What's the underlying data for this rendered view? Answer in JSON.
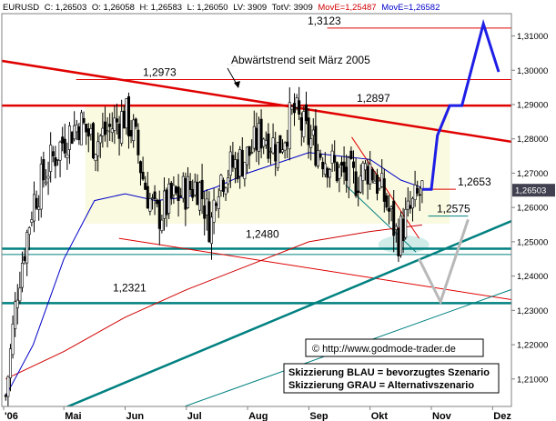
{
  "header": {
    "symbol": "EURUSD",
    "items": [
      {
        "text": "C: 1,26503",
        "color": "#000000"
      },
      {
        "text": "O: 1,26058",
        "color": "#000000"
      },
      {
        "text": "H: 1,26583",
        "color": "#000000"
      },
      {
        "text": "L: 1,26050",
        "color": "#000000"
      },
      {
        "text": "LV: 3909",
        "color": "#000000"
      },
      {
        "text": "TotV: 3909",
        "color": "#000000"
      },
      {
        "text": "MovE=1,25487",
        "color": "#d00000"
      },
      {
        "text": "MovE=1,26582",
        "color": "#0000c8"
      }
    ]
  },
  "chart_data": {
    "type": "line",
    "subtype": "candlestick",
    "title": "",
    "xlabel": "",
    "ylabel": "",
    "ylim": [
      1.202,
      1.3165
    ],
    "yticks": [
      1.21,
      1.22,
      1.23,
      1.24,
      1.25,
      1.26,
      1.27,
      1.28,
      1.29,
      1.3,
      1.31
    ],
    "ytick_labels": [
      "1,21000",
      "1,22000",
      "1,23000",
      "1,24000",
      "1,25000",
      "1,26000",
      "1,27000",
      "1,28000",
      "1,29000",
      "1,30000",
      "1,31000"
    ],
    "xticks": [
      {
        "label": "'06",
        "x": 0
      },
      {
        "label": "Mai",
        "x": 4
      },
      {
        "label": "Jun",
        "x": 5
      },
      {
        "label": "Jul",
        "x": 6
      },
      {
        "label": "Aug",
        "x": 7
      },
      {
        "label": "Sep",
        "x": 8
      },
      {
        "label": "Okt",
        "x": 9
      },
      {
        "label": "Nov",
        "x": 10
      },
      {
        "label": "Dez",
        "x": 11
      }
    ],
    "last_price_label": "1,26503",
    "close_path": [
      [
        3.05,
        1.205
      ],
      [
        3.25,
        1.238
      ],
      [
        3.5,
        1.262
      ],
      [
        3.75,
        1.272
      ],
      [
        4.0,
        1.28
      ],
      [
        4.25,
        1.285
      ],
      [
        4.5,
        1.279
      ],
      [
        4.75,
        1.283
      ],
      [
        5.0,
        1.287
      ],
      [
        5.15,
        1.281
      ],
      [
        5.3,
        1.268
      ],
      [
        5.5,
        1.257
      ],
      [
        5.75,
        1.262
      ],
      [
        6.0,
        1.265
      ],
      [
        6.2,
        1.267
      ],
      [
        6.4,
        1.254
      ],
      [
        6.5,
        1.268
      ],
      [
        6.75,
        1.272
      ],
      [
        7.0,
        1.275
      ],
      [
        7.25,
        1.282
      ],
      [
        7.5,
        1.277
      ],
      [
        7.75,
        1.288
      ],
      [
        8.0,
        1.28
      ],
      [
        8.25,
        1.275
      ],
      [
        8.5,
        1.27
      ],
      [
        8.75,
        1.268
      ],
      [
        9.0,
        1.272
      ],
      [
        9.25,
        1.262
      ],
      [
        9.45,
        1.251
      ],
      [
        9.6,
        1.257
      ],
      [
        9.75,
        1.262
      ],
      [
        9.85,
        1.265
      ]
    ],
    "moving_averages": [
      {
        "name": "MovE=1,25487",
        "color": "#d00000",
        "points": [
          [
            3.05,
            1.21
          ],
          [
            4.0,
            1.218
          ],
          [
            5.0,
            1.228
          ],
          [
            6.0,
            1.236
          ],
          [
            7.0,
            1.243
          ],
          [
            8.0,
            1.25
          ],
          [
            9.0,
            1.253
          ],
          [
            9.85,
            1.2549
          ]
        ]
      },
      {
        "name": "MovE=1,26582",
        "color": "#0000c8",
        "points": [
          [
            3.05,
            1.205
          ],
          [
            3.5,
            1.22
          ],
          [
            4.0,
            1.245
          ],
          [
            4.5,
            1.262
          ],
          [
            5.0,
            1.264
          ],
          [
            5.5,
            1.262
          ],
          [
            6.0,
            1.263
          ],
          [
            6.5,
            1.266
          ],
          [
            7.0,
            1.27
          ],
          [
            7.5,
            1.273
          ],
          [
            8.0,
            1.276
          ],
          [
            8.5,
            1.275
          ],
          [
            9.0,
            1.274
          ],
          [
            9.5,
            1.268
          ],
          [
            9.85,
            1.2658
          ]
        ]
      }
    ],
    "horizontal_levels": [
      {
        "value": 1.3123,
        "label": "1,3123",
        "color": "#e00000"
      },
      {
        "value": 1.2973,
        "label": "1,2973",
        "color": "#e00000"
      },
      {
        "value": 1.2897,
        "label": "1,2897",
        "color": "#e00000"
      },
      {
        "value": 1.2653,
        "label": "1,2653",
        "color": "#e00000"
      },
      {
        "value": 1.2575,
        "label": "1,2575",
        "color": "#008080"
      },
      {
        "value": 1.248,
        "label": "1,2480",
        "color": "#008080"
      },
      {
        "value": 1.2321,
        "label": "1,2321",
        "color": "#008080"
      }
    ],
    "trendlines": [
      {
        "from": [
          0.0,
          1.3112
        ],
        "to": [
          12.0,
          1.2772
        ],
        "color": "#e00000",
        "label": "Abwärtstrend seit März 2005"
      },
      {
        "from": [
          4.9,
          1.251
        ],
        "to": [
          12.0,
          1.2312
        ],
        "color": "#e00000",
        "label": ""
      },
      {
        "from": [
          3.8,
          1.2
        ],
        "to": [
          12.0,
          1.2612
        ],
        "color": "#008080",
        "label": ""
      },
      {
        "from": [
          5.5,
          1.199
        ],
        "to": [
          12.0,
          1.2405
        ],
        "color": "#008080",
        "label": ""
      },
      {
        "from": [
          8.7,
          1.2805
        ],
        "to": [
          9.8,
          1.251
        ],
        "color": "#e00000",
        "label": ""
      },
      {
        "from": [
          8.6,
          1.2665
        ],
        "to": [
          9.75,
          1.247
        ],
        "color": "#008080",
        "label": ""
      }
    ],
    "scenarios": [
      {
        "name": "Skizzierung BLAU = bevorzugtes Szenario",
        "color": "#1e1ee6",
        "points": [
          [
            9.85,
            1.2653
          ],
          [
            10.0,
            1.2653
          ],
          [
            10.1,
            1.281
          ],
          [
            10.3,
            1.2897
          ],
          [
            10.5,
            1.2897
          ],
          [
            10.85,
            1.3135
          ],
          [
            11.1,
            1.2995
          ]
        ]
      },
      {
        "name": "Skizzierung GRAU = Alternativszenario",
        "color": "#b8b8b8",
        "points": [
          [
            9.8,
            1.245
          ],
          [
            10.15,
            1.2325
          ],
          [
            10.6,
            1.2565
          ]
        ]
      }
    ],
    "annotations": [
      {
        "text": "Abwärtstrend seit März 2005"
      },
      {
        "text": "© http://www.godmode-trader.de"
      },
      {
        "text": "Skizzierung BLAU = bevorzugtes Szenario"
      },
      {
        "text": "Skizzierung GRAU = Alternativszenario"
      }
    ],
    "grid": false,
    "legend": "top-left"
  },
  "colors": {
    "background": "#ffffff",
    "zone": "#fafae0",
    "axis": "#808080",
    "candle_up": "#ffffff",
    "candle_down": "#000000",
    "price_tag": "#404050"
  }
}
